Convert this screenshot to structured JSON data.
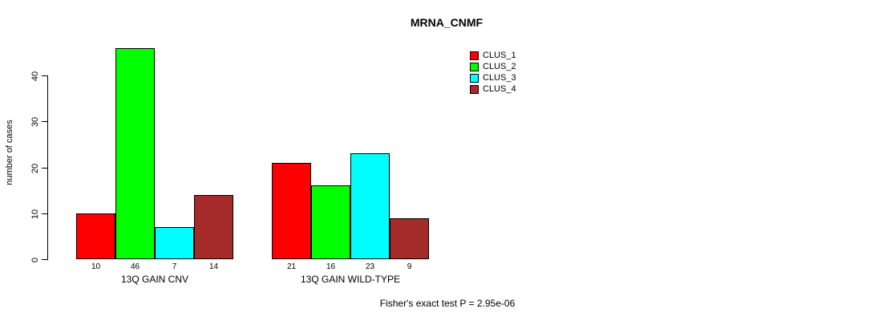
{
  "title": "MRNA_CNMF",
  "footnote": "Fisher's exact test P = 2.95e-06",
  "chart_data": {
    "type": "bar",
    "grouped": true,
    "title": "MRNA_CNMF",
    "xlabel": "",
    "ylabel": "number of cases",
    "categories": [
      "13Q GAIN CNV",
      "13Q GAIN WILD-TYPE"
    ],
    "series": [
      {
        "name": "CLUS_1",
        "color": "#FF0000",
        "values": [
          10,
          21
        ]
      },
      {
        "name": "CLUS_2",
        "color": "#00FF00",
        "values": [
          46,
          16
        ]
      },
      {
        "name": "CLUS_3",
        "color": "#00FFFF",
        "values": [
          7,
          23
        ]
      },
      {
        "name": "CLUS_4",
        "color": "#A52A2A",
        "values": [
          14,
          9
        ]
      }
    ],
    "bar_value_labels": true,
    "yticks": [
      0,
      10,
      20,
      30,
      40
    ],
    "ylim": [
      0,
      46
    ],
    "grid": false,
    "legend_position": "top-right",
    "annotation": "Fisher's exact test P = 2.95e-06"
  }
}
